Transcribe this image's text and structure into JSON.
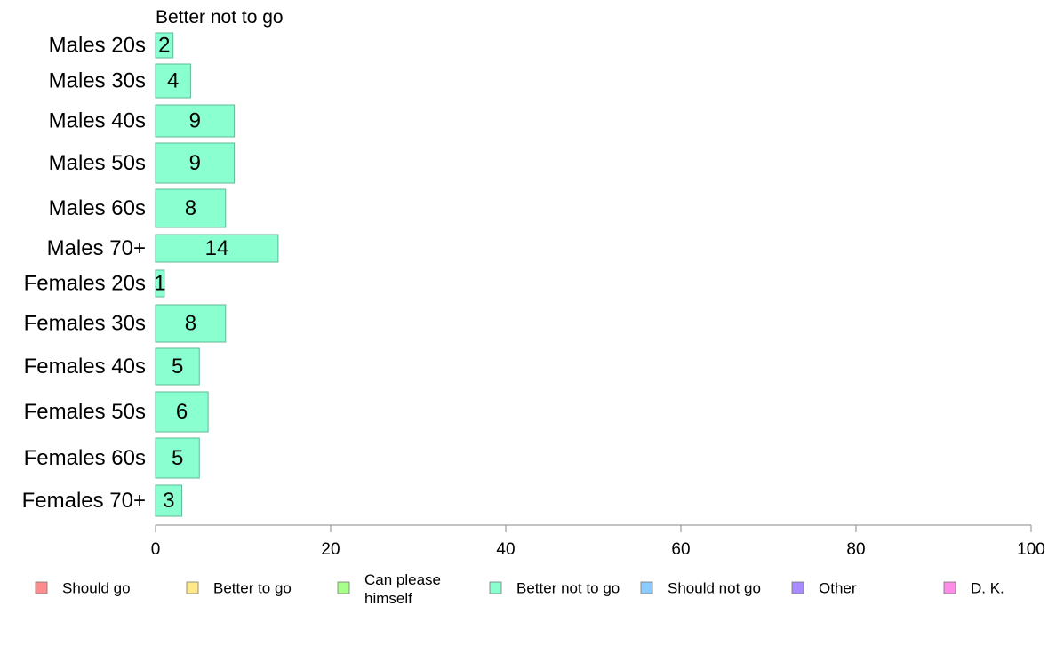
{
  "chart_data": {
    "type": "bar",
    "orientation": "horizontal",
    "title": "Better not to go",
    "categories": [
      "Males 20s",
      "Males 30s",
      "Males 40s",
      "Males 50s",
      "Males 60s",
      "Males 70+",
      "Females 20s",
      "Females 30s",
      "Females 40s",
      "Females 50s",
      "Females 60s",
      "Females 70+"
    ],
    "series": [
      {
        "name": "Better not to go",
        "values": [
          2,
          4,
          9,
          9,
          8,
          14,
          1,
          8,
          5,
          6,
          5,
          3
        ]
      }
    ],
    "xlim": [
      0,
      100
    ],
    "xticks": [
      0,
      20,
      40,
      60,
      80,
      100
    ],
    "grid": false,
    "bar_color": "#8affd0",
    "bar_stroke": "#5fb896",
    "legend_position": "bottom",
    "legend": [
      {
        "label": "Should go",
        "color": "#ff8c8c"
      },
      {
        "label": "Better to go",
        "color": "#ffe98a"
      },
      {
        "label": "Can please himself",
        "color": "#a8ff8a"
      },
      {
        "label": "Better not to go",
        "color": "#8affd0"
      },
      {
        "label": "Should not go",
        "color": "#8ccbff"
      },
      {
        "label": "Other",
        "color": "#a88cff"
      },
      {
        "label": "D. K.",
        "color": "#ff8ce8"
      }
    ]
  }
}
